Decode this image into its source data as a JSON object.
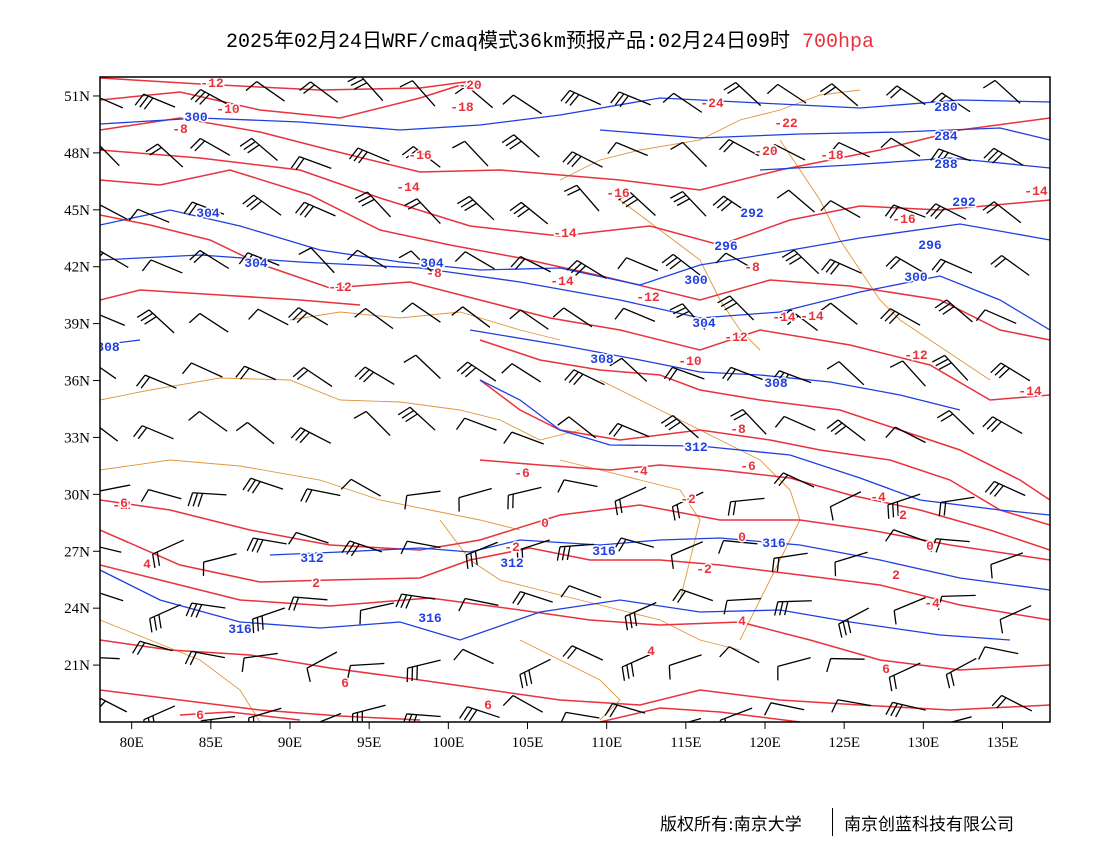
{
  "title": {
    "main": "2025年02月24日WRF/cmaq模式36km预报产品:02月24日09时",
    "level": "700hpa"
  },
  "axes": {
    "lon_ticks": [
      "80E",
      "85E",
      "90E",
      "95E",
      "100E",
      "105E",
      "110E",
      "115E",
      "120E",
      "125E",
      "130E",
      "135E"
    ],
    "lat_ticks": [
      "51N",
      "48N",
      "45N",
      "42N",
      "39N",
      "36N",
      "33N",
      "30N",
      "27N",
      "24N",
      "21N"
    ]
  },
  "map": {
    "lon_range": [
      78,
      138
    ],
    "lat_range": [
      18,
      52
    ],
    "temperature_color": "#e8323c",
    "height_color": "#1f3fe0",
    "border_color": "#e0963c",
    "barb_color": "#000000",
    "temperature_labels": [
      "-12",
      "-10",
      "-8",
      "-20",
      "-18",
      "-16",
      "-24",
      "-22",
      "-20",
      "-18",
      "-16",
      "-14",
      "-14",
      "-14",
      "-12",
      "-14",
      "-16",
      "-8",
      "-8",
      "-12",
      "-14",
      "-14",
      "-10",
      "-12",
      "-12",
      "-14",
      "-6",
      "-4",
      "-6",
      "-8",
      "-2",
      "-4",
      "-2",
      "-2",
      "0",
      "0",
      "-2",
      "0",
      "2",
      "-2",
      "-4",
      "4",
      "2",
      "2",
      "4",
      "4",
      "6",
      "6",
      "6",
      "6",
      "6"
    ],
    "height_labels": [
      "300",
      "280",
      "284",
      "288",
      "292",
      "292",
      "296",
      "296",
      "304",
      "304",
      "304",
      "300",
      "300",
      "304",
      "308",
      "308",
      "308",
      "312",
      "312",
      "312",
      "316",
      "316",
      "316",
      "316"
    ]
  },
  "footer": {
    "copyright": "版权所有:南京大学",
    "company": "南京创蓝科技有限公司"
  }
}
